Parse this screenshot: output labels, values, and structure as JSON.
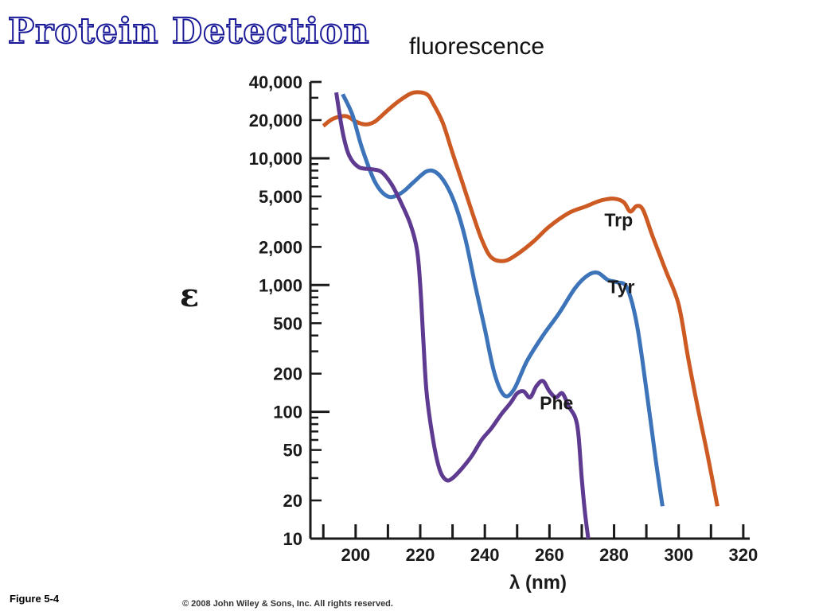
{
  "slide": {
    "title": "Protein Detection",
    "subtitle": "fluorescence",
    "figure_label": "Figure 5-4",
    "copyright": "© 2008 John Wiley & Sons, Inc. All rights reserved."
  },
  "chart_data": {
    "type": "line",
    "title": "",
    "xlabel": "λ (nm)",
    "ylabel": "ε",
    "xlim": [
      186,
      322
    ],
    "ylim": [
      10,
      40000
    ],
    "yscale": "log",
    "x_ticks": [
      200,
      220,
      240,
      260,
      280,
      300,
      320
    ],
    "x_minor_step": 10,
    "y_ticks": [
      10,
      20,
      50,
      100,
      200,
      500,
      1000,
      2000,
      5000,
      10000,
      20000,
      40000
    ],
    "y_tick_labels": [
      "10",
      "20",
      "50",
      "100",
      "200",
      "500",
      "1,000",
      "2,000",
      "5,000",
      "10,000",
      "20,000",
      "40,000"
    ],
    "grid": false,
    "legend": "none",
    "series": [
      {
        "name": "Trp",
        "color": "#cc5a22",
        "label_at": [
          277,
          2900
        ],
        "points": [
          [
            190,
            18000
          ],
          [
            193,
            20500
          ],
          [
            197,
            21500
          ],
          [
            200,
            19500
          ],
          [
            203,
            18500
          ],
          [
            206,
            19500
          ],
          [
            210,
            24000
          ],
          [
            214,
            29000
          ],
          [
            218,
            33000
          ],
          [
            222,
            32000
          ],
          [
            224,
            27000
          ],
          [
            227,
            19000
          ],
          [
            230,
            11000
          ],
          [
            233,
            6500
          ],
          [
            236,
            3800
          ],
          [
            239,
            2300
          ],
          [
            242,
            1650
          ],
          [
            246,
            1550
          ],
          [
            250,
            1750
          ],
          [
            255,
            2200
          ],
          [
            260,
            2900
          ],
          [
            266,
            3700
          ],
          [
            271,
            4150
          ],
          [
            276,
            4650
          ],
          [
            280,
            4800
          ],
          [
            283,
            4500
          ],
          [
            285,
            3800
          ],
          [
            287,
            4200
          ],
          [
            289,
            3900
          ],
          [
            292,
            2400
          ],
          [
            296,
            1300
          ],
          [
            300,
            700
          ],
          [
            303,
            260
          ],
          [
            306,
            105
          ],
          [
            309,
            45
          ],
          [
            312,
            18
          ]
        ]
      },
      {
        "name": "Tyr",
        "color": "#3d74b9",
        "label_at": [
          278,
          860
        ],
        "points": [
          [
            196,
            32000
          ],
          [
            199,
            22000
          ],
          [
            202,
            12000
          ],
          [
            206,
            6500
          ],
          [
            210,
            5000
          ],
          [
            214,
            5300
          ],
          [
            218,
            6500
          ],
          [
            222,
            7900
          ],
          [
            225,
            7700
          ],
          [
            228,
            6200
          ],
          [
            231,
            4200
          ],
          [
            234,
            2300
          ],
          [
            237,
            1000
          ],
          [
            240,
            450
          ],
          [
            243,
            200
          ],
          [
            246,
            135
          ],
          [
            249,
            150
          ],
          [
            253,
            250
          ],
          [
            258,
            400
          ],
          [
            263,
            600
          ],
          [
            268,
            950
          ],
          [
            272,
            1200
          ],
          [
            275,
            1250
          ],
          [
            278,
            1100
          ],
          [
            281,
            1050
          ],
          [
            284,
            950
          ],
          [
            287,
            500
          ],
          [
            290,
            150
          ],
          [
            293,
            40
          ],
          [
            295,
            18
          ]
        ]
      },
      {
        "name": "Phe",
        "color": "#5e3a91",
        "label_at": [
          257,
          105
        ],
        "points": [
          [
            194,
            33000
          ],
          [
            196,
            16000
          ],
          [
            198,
            10500
          ],
          [
            201,
            8500
          ],
          [
            205,
            8200
          ],
          [
            208,
            7800
          ],
          [
            211,
            6300
          ],
          [
            214,
            4500
          ],
          [
            217,
            3000
          ],
          [
            219,
            1900
          ],
          [
            220,
            1000
          ],
          [
            221,
            350
          ],
          [
            222,
            140
          ],
          [
            224,
            60
          ],
          [
            226,
            35
          ],
          [
            228,
            29
          ],
          [
            230,
            30
          ],
          [
            233,
            36
          ],
          [
            236,
            45
          ],
          [
            239,
            60
          ],
          [
            242,
            74
          ],
          [
            245,
            95
          ],
          [
            248,
            118
          ],
          [
            250,
            140
          ],
          [
            252,
            145
          ],
          [
            254,
            130
          ],
          [
            256,
            160
          ],
          [
            258,
            175
          ],
          [
            260,
            145
          ],
          [
            262,
            130
          ],
          [
            264,
            140
          ],
          [
            266,
            110
          ],
          [
            268,
            90
          ],
          [
            269,
            65
          ],
          [
            270,
            30
          ],
          [
            271,
            16
          ],
          [
            272,
            10
          ]
        ]
      }
    ]
  }
}
